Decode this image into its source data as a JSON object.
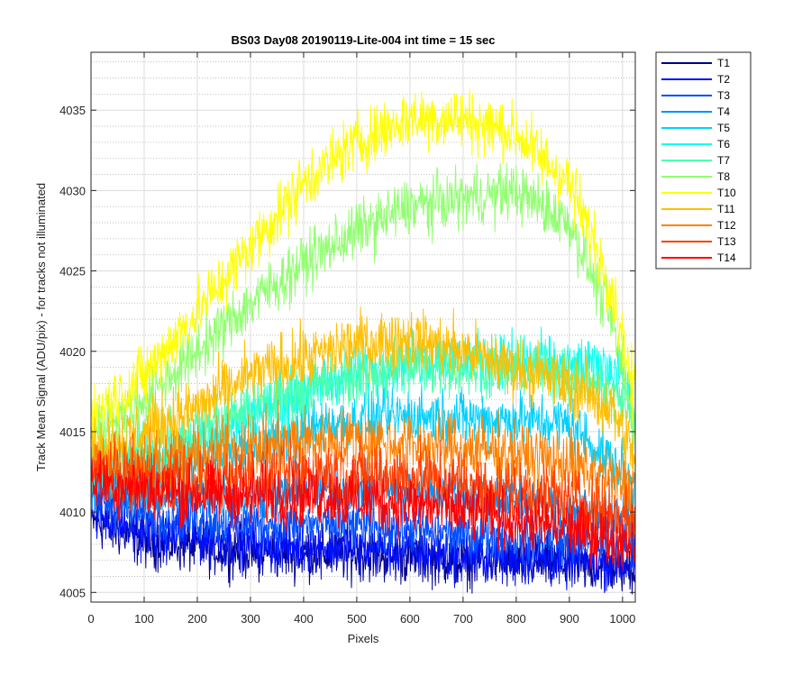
{
  "chart_data": {
    "type": "line",
    "title": "BS03 Day08 20190119-Lite-004 int time = 15 sec",
    "xlabel": "Pixels",
    "ylabel": "Track Mean Signal (ADU/pix) - for tracks not illuminated",
    "xlim": [
      0,
      1024
    ],
    "ylim": [
      4004.4,
      4038.6
    ],
    "x_ticks": [
      0,
      100,
      200,
      300,
      400,
      500,
      600,
      700,
      800,
      900,
      1000
    ],
    "y_ticks": [
      4005,
      4010,
      4015,
      4020,
      4025,
      4030,
      4035
    ],
    "grid": true,
    "minor_grid": true,
    "legend_position": "outside-right",
    "series": [
      {
        "name": "T1",
        "color": "#00008f",
        "anchors_x": [
          0,
          100,
          300,
          500,
          700,
          850,
          1020
        ],
        "anchors_y": [
          4009.5,
          4008.2,
          4007.5,
          4007.4,
          4007.0,
          4006.8,
          4006.5
        ],
        "noise": 1.2
      },
      {
        "name": "T2",
        "color": "#0010ff",
        "anchors_x": [
          0,
          100,
          300,
          500,
          700,
          850,
          1020
        ],
        "anchors_y": [
          4010.0,
          4008.8,
          4008.0,
          4007.8,
          4007.3,
          4007.0,
          4006.8
        ],
        "noise": 1.2
      },
      {
        "name": "T3",
        "color": "#0050ff",
        "anchors_x": [
          0,
          100,
          300,
          500,
          700,
          850,
          1020
        ],
        "anchors_y": [
          4011.0,
          4009.8,
          4009.3,
          4009.2,
          4008.6,
          4008.3,
          4008.0
        ],
        "noise": 1.1
      },
      {
        "name": "T4",
        "color": "#0090ff",
        "anchors_x": [
          0,
          100,
          300,
          500,
          700,
          850,
          1020
        ],
        "anchors_y": [
          4012.0,
          4011.0,
          4011.0,
          4011.5,
          4011.2,
          4010.5,
          4009.5
        ],
        "noise": 1.1
      },
      {
        "name": "T5",
        "color": "#00d0ff",
        "anchors_x": [
          0,
          150,
          300,
          450,
          600,
          750,
          900,
          1000,
          1020
        ],
        "anchors_y": [
          4012.0,
          4012.5,
          4014.0,
          4015.5,
          4016.0,
          4015.8,
          4015.5,
          4012.5,
          4011.5
        ],
        "noise": 1.3
      },
      {
        "name": "T6",
        "color": "#10ffef",
        "anchors_x": [
          0,
          150,
          300,
          450,
          600,
          750,
          900,
          1000,
          1020
        ],
        "anchors_y": [
          4012.5,
          4013.5,
          4016.0,
          4018.2,
          4019.5,
          4019.5,
          4019.0,
          4019.0,
          4016.0
        ],
        "noise": 1.3
      },
      {
        "name": "T7",
        "color": "#50ffaf",
        "anchors_x": [
          0,
          150,
          300,
          450,
          600,
          750,
          900,
          1000,
          1020
        ],
        "anchors_y": [
          4013.0,
          4014.5,
          4016.5,
          4018.0,
          4019.0,
          4019.0,
          4018.5,
          4017.0,
          4015.5
        ],
        "noise": 1.3
      },
      {
        "name": "T8",
        "color": "#90ff6f",
        "anchors_x": [
          0,
          100,
          200,
          300,
          400,
          500,
          600,
          700,
          800,
          900,
          980,
          1020
        ],
        "anchors_y": [
          4015.0,
          4017.0,
          4020.0,
          4023.0,
          4025.5,
          4027.5,
          4029.0,
          4029.5,
          4030.0,
          4028.0,
          4022.0,
          4015.5
        ],
        "noise": 1.3
      },
      {
        "name": "T10",
        "color": "#ffff00",
        "anchors_x": [
          0,
          100,
          200,
          300,
          400,
          500,
          600,
          700,
          800,
          900,
          980,
          1020
        ],
        "anchors_y": [
          4016.0,
          4018.5,
          4022.5,
          4026.5,
          4030.5,
          4033.0,
          4034.5,
          4034.5,
          4033.5,
          4030.5,
          4024.0,
          4017.5
        ],
        "noise": 1.4
      },
      {
        "name": "T11",
        "color": "#ffbf00",
        "anchors_x": [
          0,
          100,
          200,
          300,
          400,
          500,
          600,
          700,
          800,
          900,
          980,
          1020
        ],
        "anchors_y": [
          4014.0,
          4015.0,
          4016.5,
          4018.5,
          4019.5,
          4020.5,
          4020.8,
          4020.0,
          4019.0,
          4018.0,
          4016.5,
          4013.5
        ],
        "noise": 1.4
      },
      {
        "name": "T12",
        "color": "#ff8000",
        "anchors_x": [
          0,
          150,
          300,
          450,
          600,
          750,
          900,
          1020
        ],
        "anchors_y": [
          4013.0,
          4013.2,
          4014.0,
          4014.5,
          4014.2,
          4013.8,
          4013.0,
          4011.5
        ],
        "noise": 1.5
      },
      {
        "name": "T13",
        "color": "#ff4000",
        "anchors_x": [
          0,
          150,
          300,
          450,
          600,
          750,
          900,
          1020
        ],
        "anchors_y": [
          4012.5,
          4012.0,
          4012.2,
          4012.5,
          4012.2,
          4011.5,
          4010.8,
          4009.5
        ],
        "noise": 1.5
      },
      {
        "name": "T14",
        "color": "#ff0000",
        "anchors_x": [
          0,
          150,
          300,
          450,
          600,
          750,
          900,
          1020
        ],
        "anchors_y": [
          4012.0,
          4011.2,
          4011.0,
          4011.0,
          4010.5,
          4009.8,
          4009.0,
          4008.2
        ],
        "noise": 1.4
      }
    ]
  }
}
